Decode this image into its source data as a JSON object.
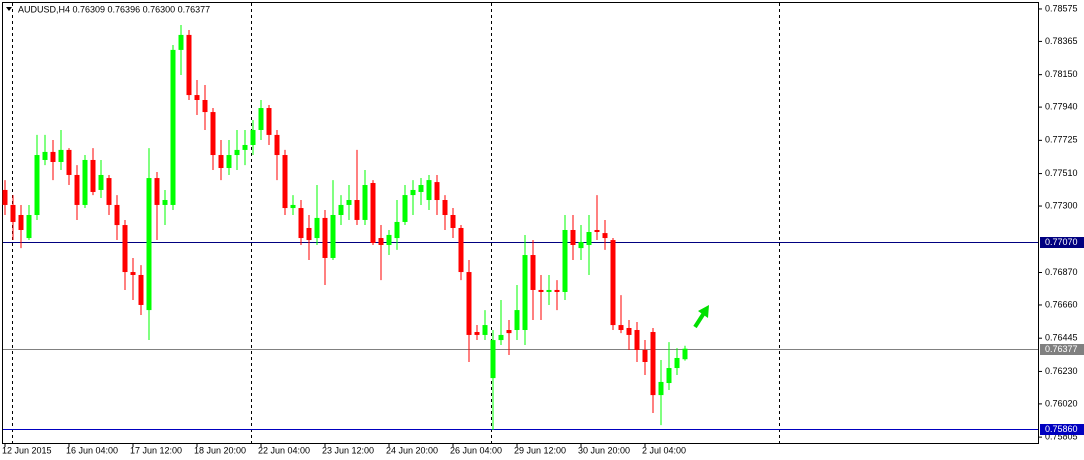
{
  "chart_data": {
    "type": "candlestick",
    "title": "AUDUSD,H4  0.76309 0.76396 0.76300 0.76377",
    "categories": [
      "12 Jun 2015",
      null,
      null,
      null,
      null,
      null,
      null,
      null,
      "16 Jun 04:00",
      null,
      null,
      null,
      null,
      null,
      null,
      null,
      "17 Jun 12:00",
      null,
      null,
      null,
      null,
      null,
      null,
      null,
      "18 Jun 20:00",
      null,
      null,
      null,
      null,
      null,
      null,
      null,
      "22 Jun 04:00",
      null,
      null,
      null,
      null,
      null,
      null,
      null,
      "23 Jun 12:00",
      null,
      null,
      null,
      null,
      null,
      null,
      null,
      "24 Jun 20:00",
      null,
      null,
      null,
      null,
      null,
      null,
      null,
      "26 Jun 04:00",
      null,
      null,
      null,
      null,
      null,
      null,
      null,
      "29 Jun 12:00",
      null,
      null,
      null,
      null,
      null,
      null,
      null,
      "30 Jun 20:00",
      null,
      null,
      null,
      null,
      null,
      null,
      null,
      "2 Jul 04:00",
      null,
      null,
      null,
      null,
      null
    ],
    "open": [
      0.77404,
      0.77307,
      0.77242,
      0.77093,
      0.77242,
      0.77598,
      0.7765,
      0.77585,
      0.77663,
      0.77501,
      0.77307,
      0.77598,
      0.77404,
      0.77481,
      0.77307,
      0.77177,
      0.76873,
      0.76854,
      0.76627,
      0.77481,
      0.77307,
      0.77307,
      0.7831,
      0.78407,
      0.78018,
      0.77986,
      0.77908,
      0.7763,
      0.77546,
      0.7763,
      0.77663,
      0.77695,
      0.77792,
      0.77934,
      0.7776,
      0.7763,
      0.77287,
      0.77287,
      0.77158,
      0.77093,
      0.77223,
      0.76964,
      0.77242,
      0.77307,
      0.77339,
      0.7721,
      0.77449,
      0.77093,
      0.77048,
      0.77093,
      0.77197,
      0.77371,
      0.77391,
      0.77339,
      0.77455,
      0.77339,
      0.77242,
      0.77158,
      0.76873,
      0.76485,
      0.76466,
      0.76187,
      0.76433,
      0.76498,
      0.76498,
      0.76498,
      0.76983,
      0.76757,
      0.76744,
      0.76757,
      0.76744,
      0.77145,
      0.77028,
      0.77048,
      0.77145,
      0.77125,
      0.7708,
      0.7653,
      0.76511,
      0.76498,
      0.76369,
      0.76485,
      0.76077,
      0.76155,
      0.76252,
      0.76309
    ],
    "high": [
      0.77468,
      0.77371,
      0.77307,
      0.77307,
      0.7776,
      0.7776,
      0.77727,
      0.77792,
      0.77675,
      0.77565,
      0.7763,
      0.77675,
      0.77598,
      0.77501,
      0.77371,
      0.7721,
      0.76964,
      0.76918,
      0.77675,
      0.7752,
      0.77404,
      0.78342,
      0.78471,
      0.78439,
      0.78115,
      0.78083,
      0.77934,
      0.77727,
      0.77727,
      0.77792,
      0.77792,
      0.77857,
      0.77986,
      0.77954,
      0.77792,
      0.77663,
      0.77371,
      0.77339,
      0.77242,
      0.77436,
      0.77274,
      0.77468,
      0.77371,
      0.77436,
      0.77663,
      0.77533,
      0.77468,
      0.77177,
      0.77145,
      0.77339,
      0.77436,
      0.77468,
      0.77481,
      0.77501,
      0.77501,
      0.77371,
      0.77287,
      0.77177,
      0.76951,
      0.7653,
      0.76627,
      0.76498,
      0.76692,
      0.76563,
      0.76789,
      0.77113,
      0.7708,
      0.76854,
      0.76854,
      0.76821,
      0.77242,
      0.77242,
      0.77177,
      0.77242,
      0.77371,
      0.7721,
      0.77093,
      0.76724,
      0.76563,
      0.7655,
      0.76433,
      0.76511,
      0.76304,
      0.7642,
      0.76381,
      0.76396
    ],
    "low": [
      0.77242,
      0.7708,
      0.77028,
      0.7708,
      0.7721,
      0.77565,
      0.77468,
      0.77533,
      0.77436,
      0.7721,
      0.77287,
      0.77371,
      0.77352,
      0.77242,
      0.7708,
      0.76757,
      0.76692,
      0.76595,
      0.76433,
      0.7708,
      0.77177,
      0.77274,
      0.78148,
      0.77986,
      0.77889,
      0.77792,
      0.77533,
      0.77468,
      0.77501,
      0.77533,
      0.77565,
      0.7763,
      0.77727,
      0.77695,
      0.77468,
      0.77242,
      0.77242,
      0.77048,
      0.76951,
      0.77048,
      0.76789,
      0.76951,
      0.77177,
      0.7721,
      0.77177,
      0.77177,
      0.77048,
      0.76821,
      0.76983,
      0.77016,
      0.77177,
      0.77242,
      0.77307,
      0.77274,
      0.77242,
      0.77145,
      0.77093,
      0.76821,
      0.76291,
      0.76433,
      0.76433,
      0.75851,
      0.76401,
      0.76336,
      0.76433,
      0.76401,
      0.76563,
      0.76563,
      0.7666,
      0.76627,
      0.76692,
      0.76951,
      0.76951,
      0.76854,
      0.7708,
      0.77016,
      0.76498,
      0.76478,
      0.76369,
      0.76291,
      0.76207,
      0.75961,
      0.75883,
      0.7611,
      0.76207,
      0.763
    ],
    "close": [
      0.77307,
      0.77197,
      0.77145,
      0.77242,
      0.7763,
      0.7765,
      0.77585,
      0.77663,
      0.77501,
      0.77307,
      0.77598,
      0.77391,
      0.77501,
      0.77307,
      0.77177,
      0.76873,
      0.76854,
      0.7666,
      0.77481,
      0.77307,
      0.77339,
      0.7831,
      0.78407,
      0.78018,
      0.77986,
      0.77908,
      0.7763,
      0.77546,
      0.7763,
      0.77663,
      0.77695,
      0.77792,
      0.77934,
      0.7776,
      0.7763,
      0.77287,
      0.77307,
      0.77093,
      0.7708,
      0.77223,
      0.76964,
      0.77242,
      0.77307,
      0.77339,
      0.7721,
      0.77436,
      0.77061,
      0.77048,
      0.77113,
      0.77197,
      0.77371,
      0.77404,
      0.77436,
      0.77468,
      0.77339,
      0.77242,
      0.77158,
      0.76873,
      0.76466,
      0.76466,
      0.7653,
      0.76433,
      0.76466,
      0.76478,
      0.76627,
      0.76983,
      0.76757,
      0.76744,
      0.76757,
      0.76744,
      0.77145,
      0.77048,
      0.77067,
      0.77132,
      0.77132,
      0.77093,
      0.7653,
      0.76498,
      0.76466,
      0.76369,
      0.76291,
      0.76077,
      0.76162,
      0.76252,
      0.76317,
      0.76377
    ],
    "up_color": "#00ff00",
    "down_color": "#ff0000",
    "ylim": [
      0.75767,
      0.7862
    ],
    "yticks": [
      0.78575,
      0.78365,
      {
        "value": 0.7815,
        "label": "0.78150"
      },
      {
        "value": 0.7794,
        "label": "0.77940"
      },
      0.77725,
      {
        "value": 0.7751,
        "label": "0.77510"
      },
      {
        "value": 0.773,
        "label": "0.77300"
      },
      {
        "value": 0.7687,
        "label": "0.76870"
      },
      {
        "value": 0.7666,
        "label": "0.76660"
      },
      0.76445,
      {
        "value": 0.7623,
        "label": "0.76230"
      },
      {
        "value": 0.7602,
        "label": "0.76020"
      },
      0.75805
    ],
    "hlines": [
      {
        "value": 0.7707,
        "label": "0.77070",
        "color": "#000080"
      },
      {
        "value": 0.76377,
        "color": "#808080"
      },
      {
        "value": 0.7586,
        "label": "0.75860",
        "color": "#0000c0"
      }
    ],
    "grid": false
  }
}
